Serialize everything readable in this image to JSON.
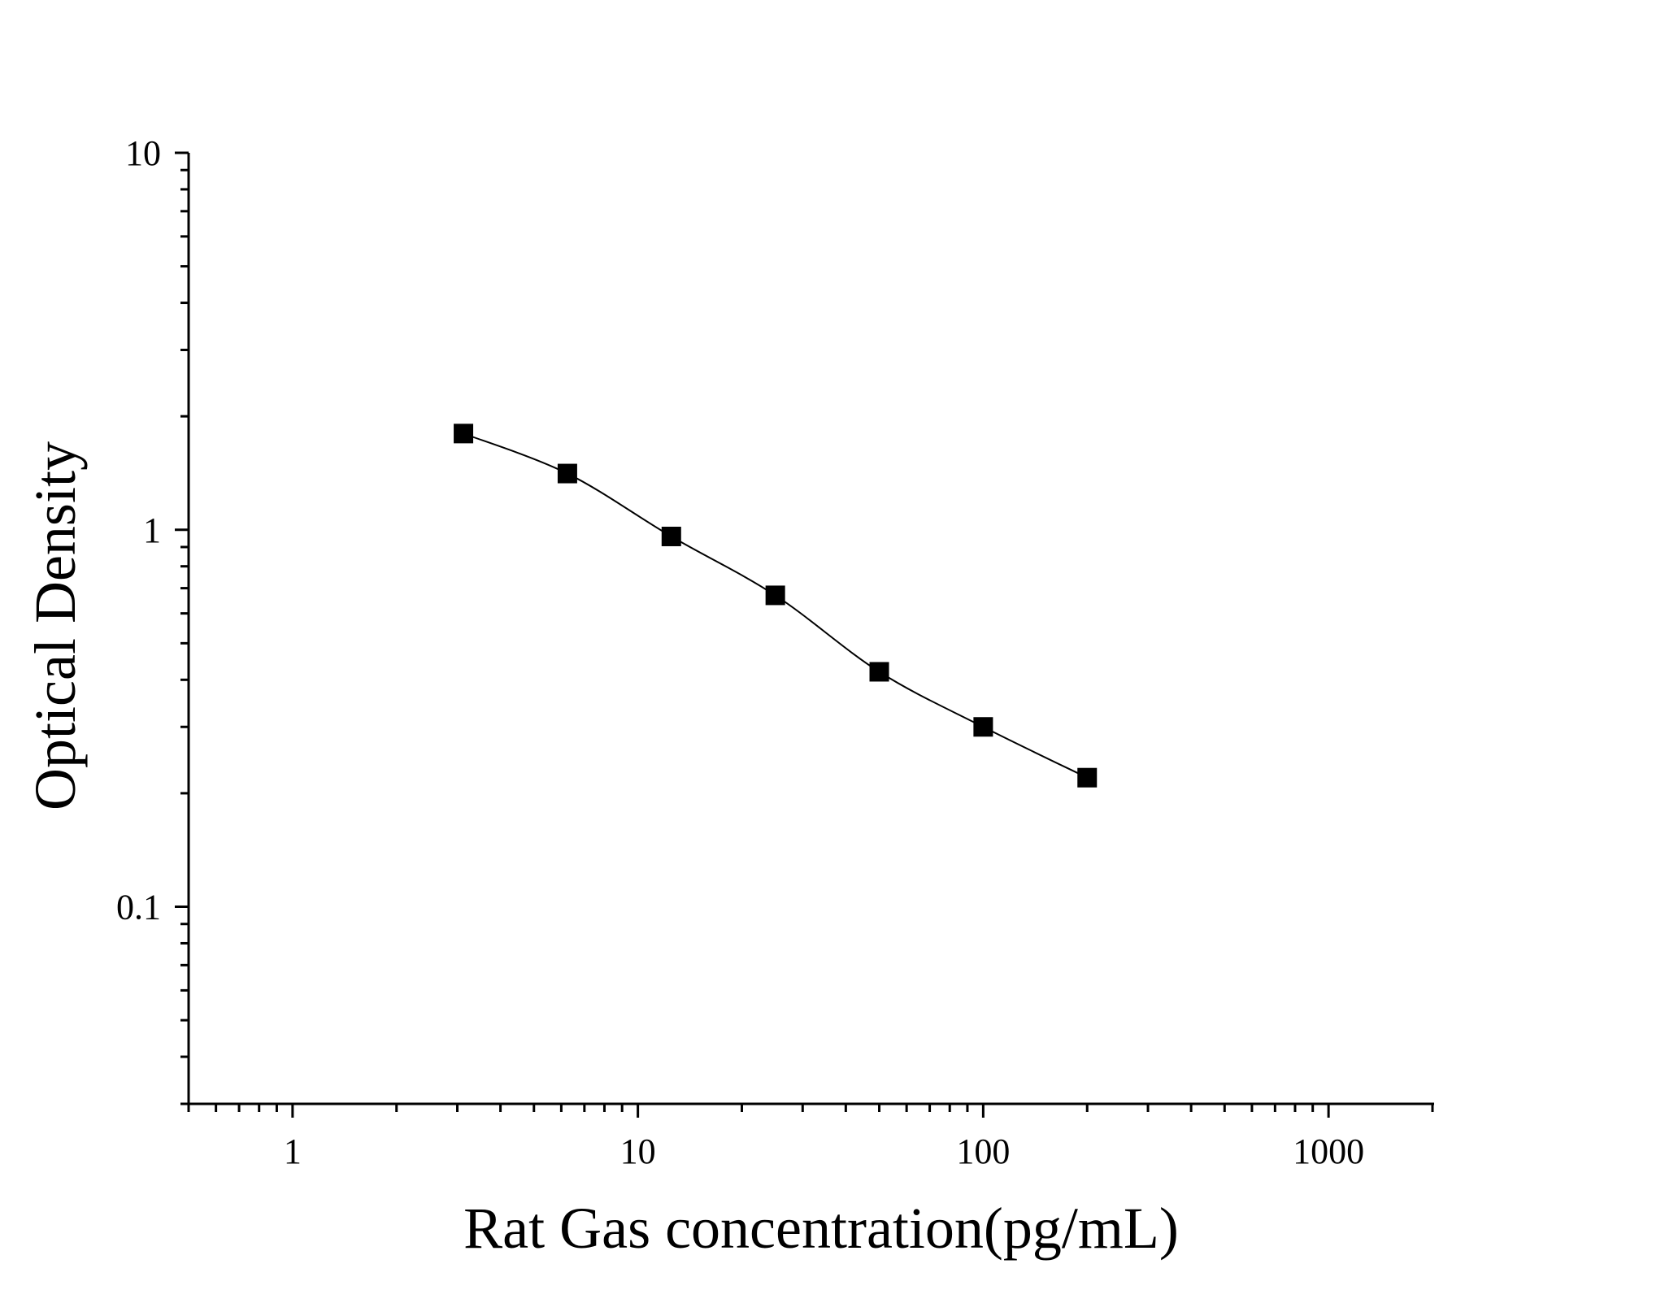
{
  "chart_data": {
    "type": "scatter",
    "xlabel": "Rat Gas concentration(pg/mL)",
    "ylabel": "Optical Density",
    "x_scale": "log",
    "y_scale": "log",
    "xlim": [
      0.5,
      2000
    ],
    "ylim": [
      0.03,
      10
    ],
    "x_ticks": [
      1,
      10,
      100,
      1000
    ],
    "x_tick_labels": [
      "1",
      "10",
      "100",
      "1000"
    ],
    "y_ticks": [
      0.1,
      1,
      10
    ],
    "y_tick_labels": [
      "0.1",
      "1",
      "10"
    ],
    "grid": false,
    "legend": "none",
    "marker": "square",
    "marker_color": "#000000",
    "line_color": "#000000",
    "series": [
      {
        "x": [
          3.125,
          6.25,
          12.5,
          25,
          50,
          100,
          200
        ],
        "y": [
          1.8,
          1.41,
          0.96,
          0.67,
          0.42,
          0.3,
          0.22
        ]
      }
    ]
  }
}
